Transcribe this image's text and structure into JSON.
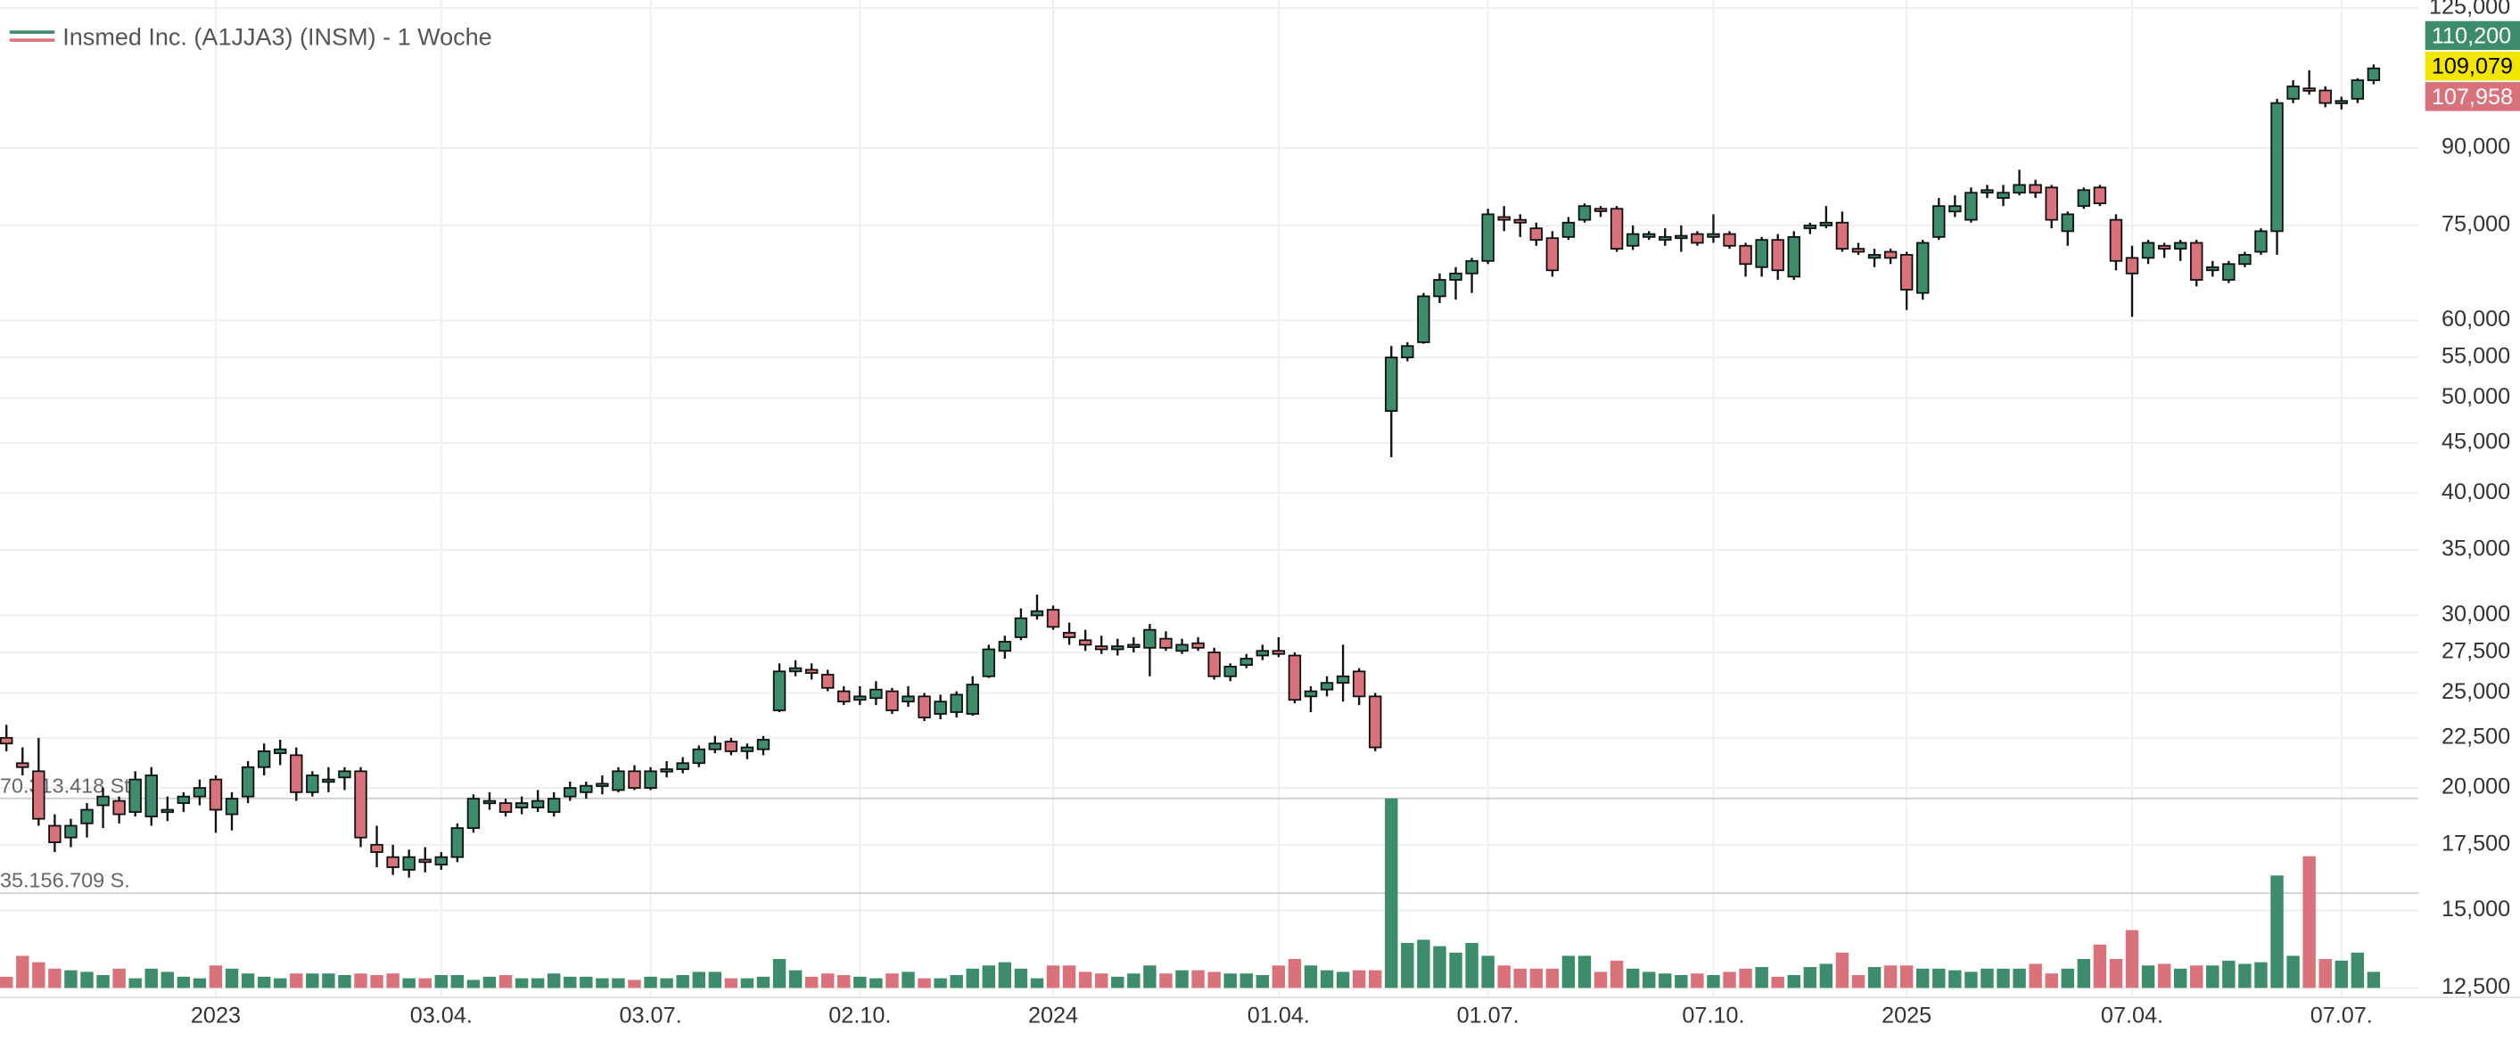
{
  "chart_data": {
    "type": "candlestick",
    "title": "Insmed Inc. (A1JJA3) (INSM) - 1 Woche",
    "categories": [
      null,
      null,
      null,
      null,
      null,
      null,
      null,
      null,
      null,
      null,
      null,
      null,
      null,
      "2023",
      null,
      null,
      null,
      null,
      null,
      null,
      null,
      null,
      null,
      null,
      null,
      null,
      null,
      "03.04.",
      null,
      null,
      null,
      null,
      null,
      null,
      null,
      null,
      null,
      null,
      null,
      null,
      "03.07.",
      null,
      null,
      null,
      null,
      null,
      null,
      null,
      null,
      null,
      null,
      null,
      null,
      "02.10.",
      null,
      null,
      null,
      null,
      null,
      null,
      null,
      null,
      null,
      null,
      null,
      "2024",
      null,
      null,
      null,
      null,
      null,
      null,
      null,
      null,
      null,
      null,
      null,
      null,
      null,
      "01.04.",
      null,
      null,
      null,
      null,
      null,
      null,
      null,
      null,
      null,
      null,
      null,
      null,
      "01.07.",
      null,
      null,
      null,
      null,
      null,
      null,
      null,
      null,
      null,
      null,
      null,
      null,
      null,
      "07.10.",
      null,
      null,
      null,
      null,
      null,
      null,
      null,
      null,
      null,
      null,
      null,
      "2025",
      null,
      null,
      null,
      null,
      null,
      null,
      null,
      null,
      null,
      null,
      null,
      null,
      null,
      "07.04.",
      null,
      null,
      null,
      null,
      null,
      null,
      null,
      null,
      null,
      null,
      null,
      null,
      "07.07.",
      null,
      null
    ],
    "open": [
      22.5,
      21.2,
      20.8,
      18.3,
      17.8,
      18.4,
      19.2,
      19.4,
      18.9,
      18.7,
      18.9,
      19.3,
      19.6,
      20.4,
      18.8,
      19.6,
      21.0,
      21.7,
      21.6,
      19.8,
      20.4,
      20.5,
      20.8,
      17.5,
      17.0,
      16.5,
      16.9,
      16.7,
      17.0,
      18.2,
      19.3,
      19.3,
      19.1,
      19.1,
      18.9,
      19.6,
      19.8,
      20.1,
      19.9,
      20.8,
      20.0,
      20.8,
      20.9,
      21.2,
      21.9,
      22.3,
      21.8,
      21.9,
      24.0,
      26.3,
      26.4,
      26.1,
      25.1,
      24.6,
      24.7,
      25.1,
      24.5,
      24.8,
      23.8,
      23.9,
      23.8,
      26.0,
      27.6,
      28.5,
      30.0,
      30.4,
      28.8,
      28.3,
      27.9,
      27.7,
      27.9,
      27.8,
      28.4,
      27.6,
      28.1,
      27.5,
      26.0,
      26.7,
      27.3,
      27.6,
      27.3,
      24.8,
      25.2,
      25.6,
      26.3,
      24.8,
      48.5,
      55.0,
      57.0,
      63.5,
      66.0,
      67.0,
      69.0,
      76.5,
      76.0,
      74.5,
      72.8,
      73.0,
      76.0,
      78.0,
      78.0,
      71.5,
      73.0,
      72.5,
      72.8,
      73.5,
      73.0,
      73.5,
      71.5,
      68.0,
      72.5,
      66.5,
      74.5,
      75.0,
      75.5,
      71.0,
      69.5,
      70.5,
      70.0,
      64.0,
      73.0,
      77.5,
      76.0,
      81.0,
      80.0,
      81.0,
      82.5,
      82.0,
      74.0,
      78.5,
      82.0,
      76.0,
      69.5,
      69.5,
      71.5,
      71.0,
      72.0,
      67.5,
      66.0,
      68.5,
      70.5,
      74.0,
      101.0,
      103.5,
      103.0,
      100.0,
      101.0,
      105.5
    ],
    "high": [
      23.2,
      22.0,
      22.5,
      18.8,
      18.6,
      19.3,
      20.0,
      19.6,
      20.8,
      21.0,
      19.6,
      19.8,
      20.4,
      20.6,
      19.8,
      21.3,
      22.2,
      22.4,
      22.0,
      20.8,
      21.0,
      21.0,
      21.0,
      18.3,
      17.5,
      17.3,
      17.4,
      17.2,
      18.4,
      19.7,
      19.8,
      19.5,
      19.6,
      19.9,
      19.8,
      20.3,
      20.3,
      20.6,
      21.0,
      21.1,
      21.0,
      21.3,
      21.5,
      22.1,
      22.6,
      22.5,
      22.2,
      22.6,
      26.8,
      27.0,
      26.8,
      26.4,
      25.4,
      25.4,
      25.7,
      25.3,
      25.4,
      25.0,
      24.9,
      25.1,
      26.0,
      28.0,
      28.6,
      30.5,
      31.5,
      30.7,
      29.5,
      29.0,
      28.6,
      28.4,
      28.5,
      29.4,
      28.9,
      28.4,
      28.5,
      27.8,
      26.8,
      27.4,
      28.0,
      28.5,
      27.5,
      25.4,
      26.0,
      28.0,
      26.5,
      25.0,
      56.5,
      57.0,
      64.0,
      67.0,
      68.0,
      69.5,
      78.0,
      78.5,
      77.0,
      75.5,
      74.0,
      76.5,
      79.0,
      78.5,
      78.5,
      75.0,
      74.0,
      74.5,
      75.0,
      74.0,
      77.0,
      74.0,
      72.0,
      73.0,
      73.5,
      74.0,
      75.5,
      78.5,
      77.5,
      72.0,
      71.0,
      71.0,
      70.5,
      72.5,
      80.0,
      80.5,
      82.0,
      82.5,
      82.5,
      85.5,
      83.5,
      82.5,
      77.5,
      82.0,
      82.5,
      77.0,
      71.5,
      72.5,
      72.0,
      72.5,
      72.5,
      69.0,
      69.0,
      70.5,
      74.5,
      101.0,
      105.5,
      108.0,
      104.0,
      101.5,
      106.0,
      109.5
    ],
    "low": [
      21.8,
      20.6,
      18.3,
      17.2,
      17.4,
      17.8,
      18.2,
      18.4,
      18.7,
      18.3,
      18.5,
      18.9,
      19.2,
      18.0,
      18.1,
      19.3,
      20.6,
      21.1,
      19.4,
      19.6,
      19.8,
      19.9,
      17.4,
      16.6,
      16.3,
      16.2,
      16.4,
      16.5,
      16.8,
      18.0,
      19.0,
      18.7,
      18.8,
      18.9,
      18.7,
      19.4,
      19.5,
      19.7,
      19.8,
      19.9,
      19.9,
      20.5,
      20.7,
      21.0,
      21.7,
      21.6,
      21.4,
      21.6,
      23.9,
      26.0,
      25.8,
      25.1,
      24.3,
      24.3,
      24.3,
      23.8,
      24.2,
      23.4,
      23.5,
      23.6,
      23.7,
      25.9,
      27.1,
      28.3,
      29.7,
      29.0,
      28.0,
      27.6,
      27.4,
      27.3,
      27.5,
      26.0,
      27.6,
      27.4,
      27.6,
      25.8,
      25.7,
      26.5,
      27.0,
      27.2,
      24.4,
      23.9,
      24.8,
      24.5,
      24.3,
      21.8,
      43.5,
      54.5,
      56.8,
      62.5,
      63.0,
      64.0,
      68.5,
      74.0,
      73.0,
      71.5,
      66.5,
      72.5,
      75.5,
      76.5,
      70.5,
      70.8,
      72.5,
      71.5,
      70.5,
      71.5,
      72.0,
      71.0,
      66.5,
      66.5,
      66.0,
      66.0,
      73.5,
      74.5,
      70.5,
      70.0,
      68.0,
      68.5,
      61.5,
      63.0,
      72.5,
      76.5,
      75.5,
      80.0,
      78.5,
      80.5,
      80.0,
      74.5,
      71.5,
      78.0,
      78.5,
      67.5,
      60.5,
      68.5,
      69.5,
      69.0,
      65.0,
      66.5,
      65.5,
      68.0,
      70.0,
      70.0,
      100.0,
      102.0,
      99.0,
      98.5,
      100.0,
      104.5
    ],
    "close": [
      22.2,
      21.0,
      18.6,
      17.6,
      18.3,
      19.0,
      19.6,
      18.8,
      20.4,
      20.6,
      19.0,
      19.6,
      20.0,
      19.0,
      19.5,
      21.0,
      21.8,
      21.9,
      19.8,
      20.6,
      20.4,
      20.8,
      17.8,
      17.2,
      16.6,
      17.0,
      16.8,
      17.0,
      18.2,
      19.5,
      19.4,
      18.9,
      19.3,
      19.4,
      19.5,
      20.0,
      20.1,
      20.2,
      20.8,
      20.0,
      20.8,
      20.9,
      21.2,
      21.9,
      22.2,
      21.8,
      22.0,
      22.4,
      26.3,
      26.5,
      26.2,
      25.3,
      24.5,
      24.8,
      25.2,
      24.0,
      24.8,
      23.6,
      24.5,
      24.9,
      25.5,
      27.7,
      28.2,
      29.8,
      30.3,
      29.2,
      28.5,
      28.0,
      27.7,
      27.9,
      28.0,
      29.0,
      27.8,
      28.0,
      27.8,
      26.0,
      26.6,
      27.1,
      27.6,
      27.4,
      24.6,
      25.1,
      25.6,
      26.0,
      24.8,
      22.0,
      55.0,
      56.5,
      63.5,
      66.0,
      67.0,
      69.0,
      77.0,
      76.0,
      75.5,
      72.5,
      67.5,
      75.5,
      78.5,
      77.8,
      71.0,
      73.5,
      73.5,
      73.0,
      73.2,
      72.0,
      73.5,
      71.5,
      68.5,
      72.5,
      67.5,
      73.0,
      75.0,
      75.5,
      71.0,
      70.5,
      70.0,
      69.5,
      64.5,
      72.0,
      78.5,
      78.5,
      81.0,
      81.5,
      81.0,
      82.5,
      81.0,
      76.0,
      77.0,
      81.5,
      79.0,
      69.0,
      67.0,
      72.0,
      71.0,
      72.0,
      66.0,
      68.0,
      68.5,
      70.0,
      74.0,
      100.0,
      104.0,
      103.0,
      100.0,
      100.5,
      105.5,
      108.5
    ],
    "volume": [
      4170000,
      11920000,
      9540000,
      7150000,
      6560000,
      5960000,
      4770000,
      7150000,
      3580000,
      7150000,
      5960000,
      4170000,
      3580000,
      8340000,
      7150000,
      5360000,
      4170000,
      3580000,
      5360000,
      5360000,
      5360000,
      4770000,
      5360000,
      4770000,
      5360000,
      3580000,
      3580000,
      4770000,
      4770000,
      2980000,
      4170000,
      4770000,
      3580000,
      3580000,
      5360000,
      4170000,
      4170000,
      3580000,
      3580000,
      2980000,
      4170000,
      3580000,
      4770000,
      5960000,
      5960000,
      3580000,
      3580000,
      4170000,
      10730000,
      6560000,
      4170000,
      5360000,
      4770000,
      4170000,
      3580000,
      5360000,
      5960000,
      3580000,
      3580000,
      4770000,
      7150000,
      8340000,
      9540000,
      7150000,
      3580000,
      8340000,
      8340000,
      5960000,
      5360000,
      4170000,
      5360000,
      8340000,
      5360000,
      6560000,
      6560000,
      5960000,
      5360000,
      5360000,
      4770000,
      8340000,
      10730000,
      8340000,
      6560000,
      5960000,
      6560000,
      6560000,
      70313418,
      16690000,
      17880000,
      15500000,
      13110000,
      16690000,
      11920000,
      8340000,
      7150000,
      7150000,
      7150000,
      11920000,
      11920000,
      5960000,
      10130000,
      7150000,
      5960000,
      5360000,
      4770000,
      5360000,
      4770000,
      5960000,
      7150000,
      7750000,
      4170000,
      4770000,
      7750000,
      8940000,
      13110000,
      4770000,
      7750000,
      8340000,
      8340000,
      7150000,
      7150000,
      6560000,
      5960000,
      7150000,
      7150000,
      7150000,
      8940000,
      5360000,
      7150000,
      10730000,
      16090000,
      10730000,
      21460000,
      8340000,
      8940000,
      7150000,
      8340000,
      8340000,
      10130000,
      8940000,
      9540000,
      41720000,
      11920000,
      48870000,
      10730000,
      10130000,
      13110000,
      5960000
    ],
    "up_color": "#3d8c6c",
    "down_color": "#d9727a",
    "ylim": [
      12.5,
      125
    ],
    "log_scale": true,
    "yticks": [
      {
        "value": 12.5,
        "label": "12,500"
      },
      {
        "value": 15,
        "label": "15,000"
      },
      {
        "value": 17.5,
        "label": "17,500"
      },
      {
        "value": 20,
        "label": "20,000"
      },
      {
        "value": 22.5,
        "label": "22,500"
      },
      {
        "value": 25,
        "label": "25,000"
      },
      {
        "value": 27.5,
        "label": "27,500"
      },
      {
        "value": 30,
        "label": "30,000"
      },
      {
        "value": 35,
        "label": "35,000"
      },
      {
        "value": 40,
        "label": "40,000"
      },
      {
        "value": 45,
        "label": "45,000"
      },
      {
        "value": 50,
        "label": "50,000"
      },
      {
        "value": 55,
        "label": "55,000"
      },
      {
        "value": 60,
        "label": "60,000"
      },
      {
        "value": 75,
        "label": "75,000"
      },
      {
        "value": 90,
        "label": "90,000"
      },
      {
        "value": 125,
        "label": "125,000"
      }
    ],
    "volume_ylim": [
      0,
      70313418
    ],
    "volume_lines": [
      {
        "value": 70313418,
        "label": "70.313.418 St."
      },
      {
        "value": 35156709,
        "label": "35.156.709 S."
      }
    ],
    "price_labels": [
      {
        "value": 110.2,
        "label": "110,200",
        "color": "#3d8c6c"
      },
      {
        "value": 109.079,
        "label": "109,079",
        "color": "#f2e600"
      },
      {
        "value": 107.958,
        "label": "107,958",
        "color": "#d9727a"
      }
    ],
    "grid": true
  }
}
